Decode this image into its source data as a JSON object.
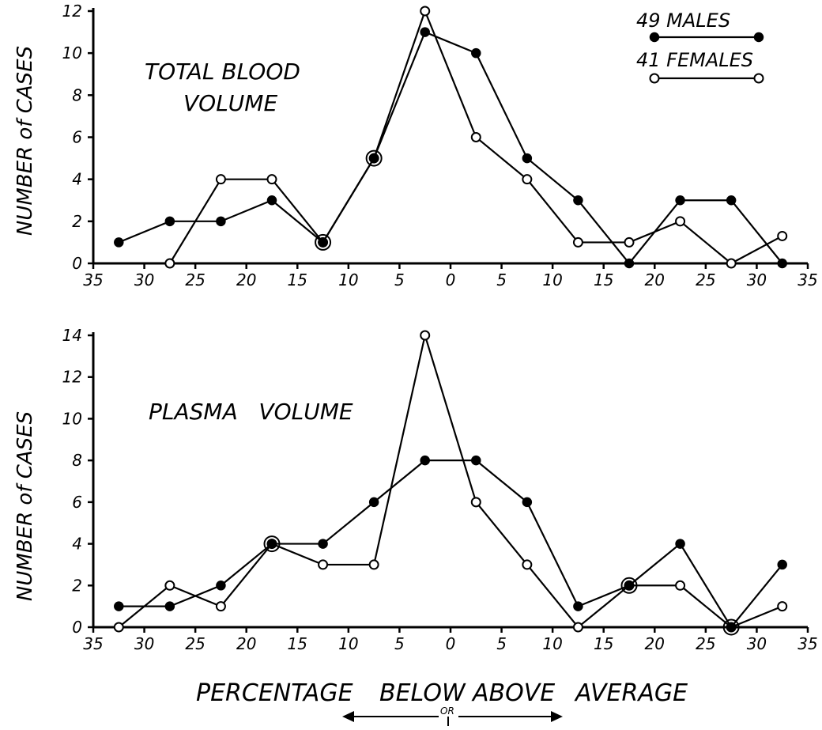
{
  "chart_data": [
    {
      "type": "line",
      "title": "TOTAL BLOOD VOLUME",
      "ylabel": "NUMBER of CASES",
      "xlabel": "",
      "x": [
        -32.5,
        -27.5,
        -22.5,
        -17.5,
        -12.5,
        -7.5,
        -2.5,
        2.5,
        7.5,
        12.5,
        17.5,
        22.5,
        27.5,
        32.5
      ],
      "series": [
        {
          "name": "49 MALES",
          "marker": "filled",
          "values": [
            1,
            2,
            2,
            3,
            1,
            5,
            11,
            10,
            5,
            3,
            0,
            3,
            3,
            0
          ]
        },
        {
          "name": "41 FEMALES",
          "marker": "open",
          "values": [
            null,
            0,
            4,
            4,
            1,
            5,
            12,
            6,
            4,
            1,
            1,
            2,
            0,
            1.3
          ]
        }
      ],
      "xticks": [
        "35",
        "30",
        "25",
        "20",
        "15",
        "10",
        "5",
        "0",
        "5",
        "10",
        "15",
        "20",
        "25",
        "30",
        "35"
      ],
      "yticks": [
        "0",
        "2",
        "4",
        "6",
        "8",
        "10",
        "12"
      ],
      "ylim": [
        0,
        12
      ],
      "xlim": [
        -35,
        35
      ],
      "legend_placement": "top-right",
      "grid": false
    },
    {
      "type": "line",
      "title": "PLASMA VOLUME",
      "ylabel": "NUMBER of CASES",
      "xlabel": "PERCENTAGE BELOW OR ABOVE AVERAGE",
      "x": [
        -32.5,
        -27.5,
        -22.5,
        -17.5,
        -12.5,
        -7.5,
        -2.5,
        2.5,
        7.5,
        12.5,
        17.5,
        22.5,
        27.5,
        32.5
      ],
      "series": [
        {
          "name": "49 MALES",
          "marker": "filled",
          "values": [
            1,
            1,
            2,
            4,
            4,
            6,
            8,
            8,
            6,
            1,
            2,
            4,
            0,
            3
          ]
        },
        {
          "name": "41 FEMALES",
          "marker": "open",
          "values": [
            0,
            2,
            1,
            4,
            3,
            3,
            14,
            6,
            3,
            0,
            2,
            2,
            0,
            1
          ]
        }
      ],
      "xticks": [
        "35",
        "30",
        "25",
        "20",
        "15",
        "10",
        "5",
        "0",
        "5",
        "10",
        "15",
        "20",
        "25",
        "30",
        "35"
      ],
      "yticks": [
        "0",
        "2",
        "4",
        "6",
        "8",
        "10",
        "12",
        "14"
      ],
      "ylim": [
        0,
        14
      ],
      "xlim": [
        -35,
        35
      ],
      "grid": false
    }
  ],
  "labels": {
    "top_title_line1": "TOTAL BLOOD",
    "top_title_line2": "VOLUME",
    "bottom_title": "PLASMA   VOLUME",
    "ylabel_top": "NUMBER of CASES",
    "ylabel_bottom": "NUMBER of CASES",
    "legend_males": "49 MALES",
    "legend_females": "41 FEMALES",
    "xlabel_percentage": "PERCENTAGE",
    "xlabel_below": "BELOW",
    "xlabel_above": "ABOVE",
    "xlabel_average": "AVERAGE",
    "xlabel_or": "OR"
  }
}
